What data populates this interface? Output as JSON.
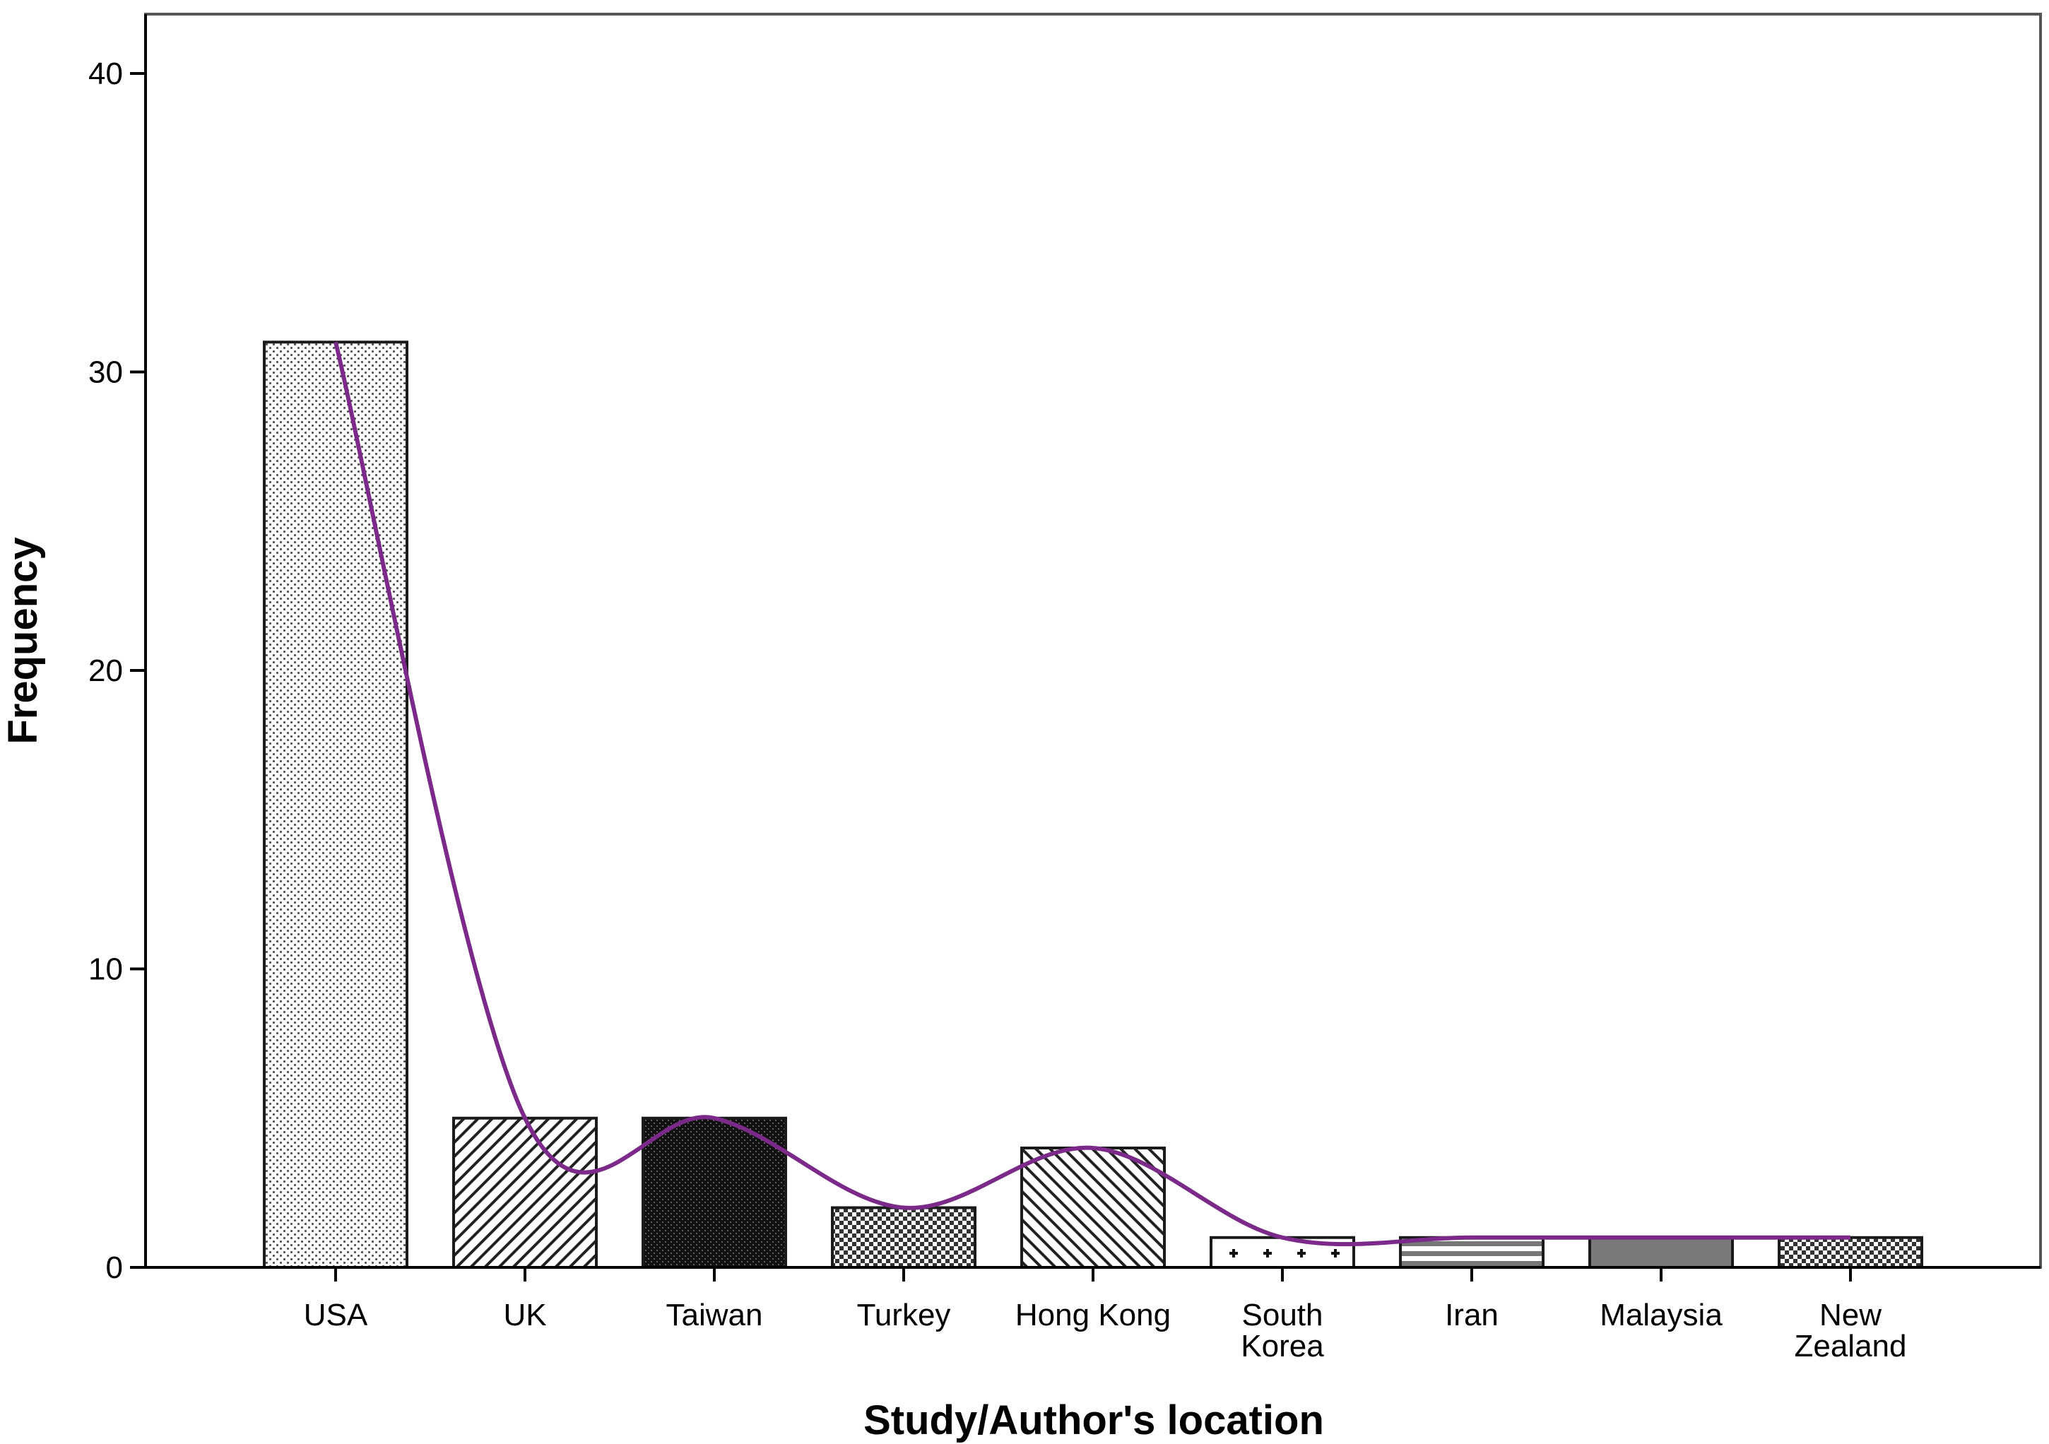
{
  "chart_data": {
    "type": "bar",
    "xlabel": "Study/Author's location",
    "ylabel": "Frequency",
    "ylim": [
      0,
      42
    ],
    "yticks": [
      0,
      10,
      20,
      30,
      40
    ],
    "grid": false,
    "categories": [
      [
        "USA"
      ],
      [
        "UK"
      ],
      [
        "Taiwan"
      ],
      [
        "Turkey"
      ],
      [
        "Hong Kong"
      ],
      [
        "South",
        "Korea"
      ],
      [
        "Iran"
      ],
      [
        "Malaysia"
      ],
      [
        "New",
        "Zealand"
      ]
    ],
    "values": [
      31,
      5,
      5,
      2,
      4,
      1,
      1,
      1,
      1
    ],
    "bar_patterns": [
      "dots",
      "diag-right",
      "dense-black",
      "checker",
      "diag-left",
      "plus",
      "hstripes",
      "solid-gray",
      "checker"
    ],
    "curve": {
      "type": "smoothed line",
      "color": "#7b2a8a"
    },
    "colors": {
      "bar_stroke": "#1a1a1a",
      "curve": "#7b2a8a",
      "axis": "#000000"
    }
  }
}
